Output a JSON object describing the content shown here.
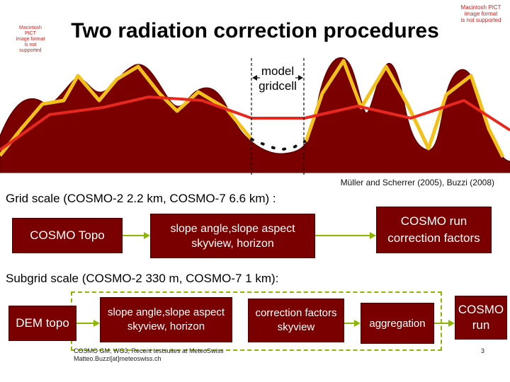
{
  "title": "Two radiation correction procedures",
  "unsupported_left": [
    "Macintosh PICT",
    "image format",
    "is not supported"
  ],
  "unsupported_right": [
    "Macintosh PICT",
    "image format",
    "is not supported"
  ],
  "diagram": {
    "gridcell_label_1": "model",
    "gridcell_label_2": "gridcell",
    "citation": "Müller and Scherrer (2005), Buzzi (2008)",
    "colors": {
      "terrain": "#7a0000",
      "coarse_line": "#e8281e",
      "fine_line": "#f2c21a"
    }
  },
  "grid_scale": {
    "heading": "Grid scale (COSMO-2 2.2 km, COSMO-7 6.6 km) :",
    "box1": "COSMO Topo",
    "box2_line1": "slope angle,slope aspect",
    "box2_line2": "skyview, horizon",
    "box3_line1": "COSMO run",
    "box3_line2": "correction factors"
  },
  "subgrid_scale": {
    "heading": "Subgrid scale (COSMO-2 330 m, COSMO-7 1 km):",
    "box1": "DEM topo",
    "box2_line1": "slope angle,slope aspect",
    "box2_line2": "skyview, horizon",
    "box3_line1": "correction factors",
    "box3_line2": "skyview",
    "box4": "aggregation",
    "box5_line1": "COSMO",
    "box5_line2": "run"
  },
  "footer": {
    "line1": "COSMO GM, WG3, Recent testsuites at MeteoSwiss",
    "line2": "Matteo.Buzzi[at]meteoswiss.ch",
    "page_number": "3"
  }
}
